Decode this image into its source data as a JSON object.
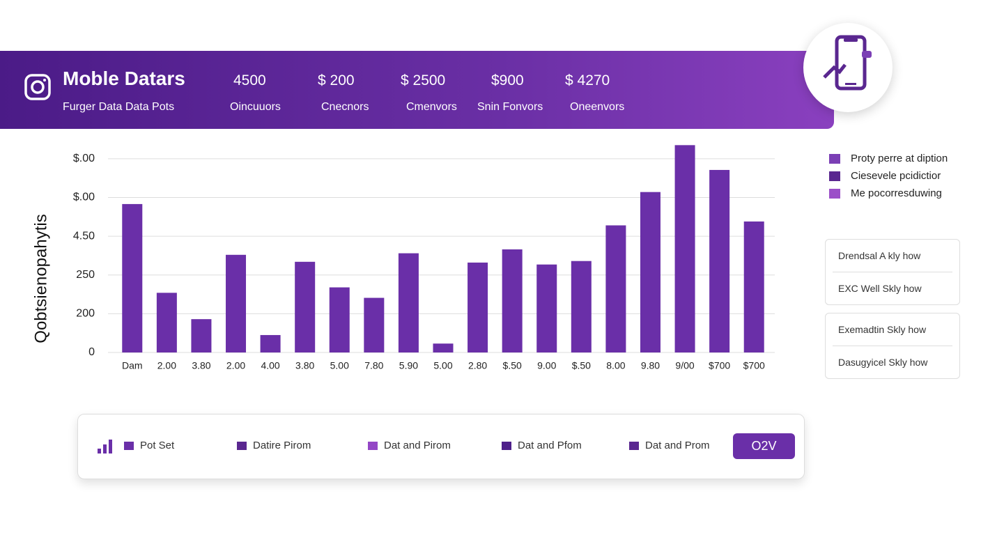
{
  "header": {
    "title": "Moble Datars",
    "subtitle": "Furger Data Data Pots",
    "stats": [
      {
        "value": "4500",
        "label": "Oincuuors"
      },
      {
        "value": "$ 200",
        "label": "Cnecnors"
      },
      {
        "value": "$ 2500",
        "label": "Cmenvors"
      },
      {
        "value": "$900",
        "label": "Snin Fonvors"
      },
      {
        "value": "$ 4270",
        "label": "Oneenvors"
      }
    ]
  },
  "chart_data": {
    "type": "bar",
    "ylabel": "Qobtsienopahytis",
    "categories": [
      "Dam",
      "2.00",
      "3.80",
      "2.00",
      "4.00",
      "3.80",
      "5.00",
      "7.80",
      "5.90",
      "5.00",
      "2.80",
      "$.50",
      "9.00",
      "$.50",
      "8.00",
      "9.80",
      "9/00",
      "$700",
      "$700"
    ],
    "values": [
      3.83,
      1.54,
      0.86,
      2.52,
      0.45,
      2.34,
      1.68,
      1.41,
      2.56,
      0.23,
      2.32,
      2.66,
      2.27,
      2.36,
      3.28,
      4.14,
      5.35,
      4.71,
      3.38
    ],
    "color": "#6a2fa8",
    "ylim": [
      0,
      5.5
    ],
    "yticks": [
      0,
      {
        "value": 1,
        "label": "200"
      },
      {
        "value": 2,
        "label": "250"
      },
      {
        "value": 3,
        "label": "4.50"
      },
      {
        "value": 4,
        "label": "$.00"
      },
      {
        "value": 5,
        "label": "$.00"
      }
    ],
    "grid": true
  },
  "legend": [
    {
      "label": "Proty perre at diption",
      "color": "#7b3fb5"
    },
    {
      "label": "Ciesevele pcidictior",
      "color": "#5a2790"
    },
    {
      "label": "Me pocorresduwing",
      "color": "#9b4fc8"
    }
  ],
  "panels": [
    [
      "Drendsal A kly how",
      "EXC Well Skly how"
    ],
    [
      "Exemadtin Skly how",
      "Dasugyicel Skly how"
    ]
  ],
  "bottom_bar": {
    "items": [
      {
        "label": "Pot Set",
        "color": "#6a2fa8"
      },
      {
        "label": "Datire Pirom",
        "color": "#5a2790"
      },
      {
        "label": "Dat and Pirom",
        "color": "#9447c6"
      },
      {
        "label": "Dat and Pfom",
        "color": "#4e1f8a"
      },
      {
        "label": "Dat and Prom",
        "color": "#5a2790"
      }
    ],
    "button": "O2V"
  }
}
